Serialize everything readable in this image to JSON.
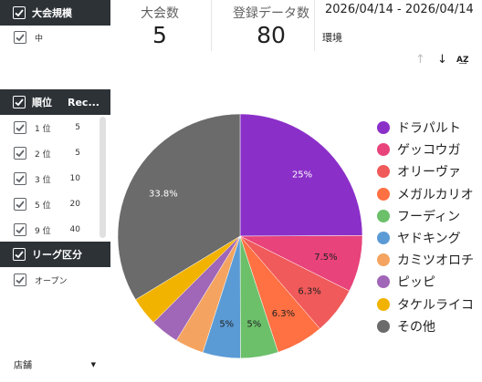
{
  "filters": {
    "tournament": {
      "header": "大会規模",
      "items": [
        {
          "label": "中"
        }
      ]
    },
    "rank": {
      "header_label": "順位",
      "header_col": "Rec...",
      "items": [
        {
          "label": "1 位",
          "count": "5"
        },
        {
          "label": "2 位",
          "count": "5"
        },
        {
          "label": "3 位",
          "count": "10"
        },
        {
          "label": "5 位",
          "count": "20"
        },
        {
          "label": "9 位",
          "count": "40"
        }
      ]
    },
    "league": {
      "header": "リーグ区分",
      "items": [
        {
          "label": "オープン"
        }
      ]
    },
    "store": {
      "label": "店舗"
    }
  },
  "scorecards": [
    {
      "label": "大会数",
      "value": "5"
    },
    {
      "label": "登録データ数",
      "value": "80"
    }
  ],
  "date_range": "2026/04/14 - 2026/04/14",
  "environment": "環境",
  "toolbar_icons": [
    "arrow-up-icon",
    "arrow-down-icon",
    "sort-az-icon"
  ],
  "chart_data": {
    "type": "pie",
    "title": "",
    "labels": [
      "ドラパルト",
      "ゲッコウガ",
      "オリーヴァ",
      "メガルカリオ",
      "フーディン",
      "ヤドキング",
      "カミツオロチ",
      "ピッピ",
      "タケルライコ",
      "その他"
    ],
    "values": [
      25,
      7.5,
      6.3,
      6.3,
      5,
      5,
      3.8,
      3.8,
      3.8,
      33.8
    ],
    "value_labels": [
      "25%",
      "7.5%",
      "6.3%",
      "6.3%",
      "5%",
      "5%",
      "",
      "",
      "",
      "33.8%"
    ],
    "colors": [
      "#8b2fc9",
      "#e8437a",
      "#f05a5a",
      "#ff7043",
      "#6cc06a",
      "#5b9bd5",
      "#f4a460",
      "#a066b7",
      "#f2b300",
      "#6b6b6b"
    ],
    "legend_placement": "right"
  }
}
